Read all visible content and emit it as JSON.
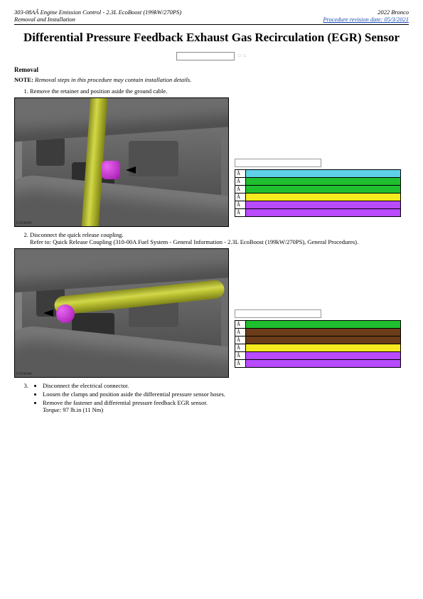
{
  "header": {
    "left_line1": "303-08AÂ Engine Emission Control - 2.3L EcoBoost (199kW/270PS)",
    "left_line2": "Removal and Installation",
    "right_line1": "2022 Bronco",
    "right_line2": "Procedure revision date: 05/3/2021"
  },
  "title": "Differential Pressure Feedback Exhaust Gas Recirculation (EGR) Sensor",
  "removal_heading": "Removal",
  "note_label": "NOTE:",
  "note_text": "Removal steps in this procedure may contain installation details.",
  "steps": {
    "s1": "Remove the retainer and position aside the ground cable.",
    "s2a": "Disconnect the quick release coupling.",
    "s2b": "Refer to: Quick Release Coupling (310-00A Fuel System - General Information - 2.3L EcoBoost (199kW/270PS), General Procedures).",
    "s3_items": {
      "a": "Disconnect the electrical connector.",
      "b": "Loosen the clamps and position aside the differential pressure sensor hoses.",
      "c": "Remove the fastener and differential pressure feedback EGR sensor.",
      "torque_label": "Torque:",
      "torque_val": "97 lb.in (11 Nm)"
    }
  },
  "fig_tags": {
    "f1": "E354669",
    "f2": "E354640"
  },
  "legend_label": "Â",
  "legend1_colors": [
    "#5fd0e8",
    "#1fbf2f",
    "#1fbf2f",
    "#f5ea1f",
    "#b84aff",
    "#b84aff"
  ],
  "legend2_colors": [
    "#1fbf2f",
    "#6b3d1a",
    "#6b3d1a",
    "#f5ea1f",
    "#b84aff",
    "#b84aff"
  ]
}
